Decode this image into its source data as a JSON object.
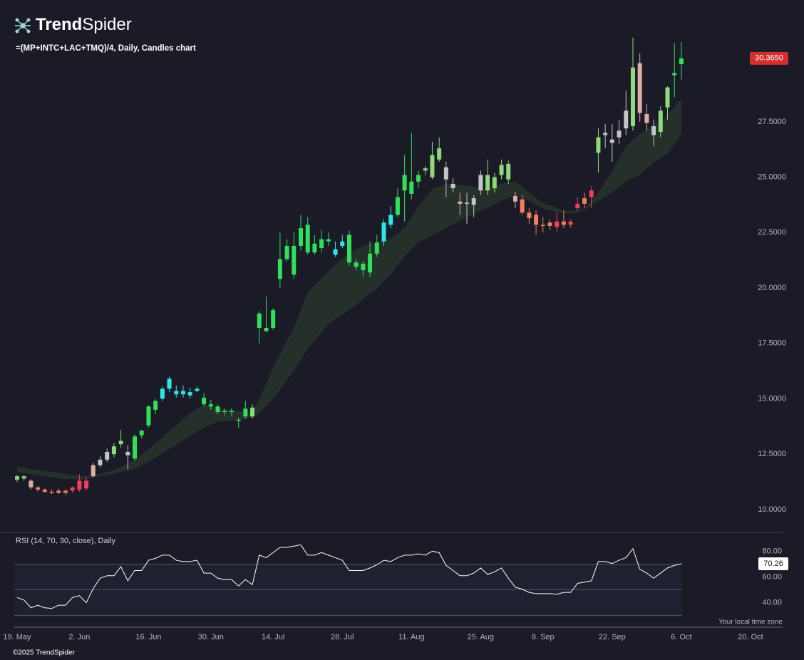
{
  "logo": [
    "Trend",
    "Spider"
  ],
  "footer": "©2025 TrendSpider",
  "timezone_note": "Your local time zone",
  "chart_data": [
    {
      "type": "candlestick",
      "title": "=(MP+INTC+LAC+TMQ)/4, Daily, Candles chart",
      "categories": [
        "19. May",
        null,
        null,
        null,
        null,
        null,
        null,
        null,
        null,
        "2. Jun",
        null,
        null,
        null,
        null,
        null,
        null,
        null,
        null,
        null,
        "16. Jun",
        null,
        null,
        null,
        null,
        null,
        null,
        null,
        null,
        "30. Jun",
        null,
        null,
        null,
        null,
        null,
        null,
        null,
        null,
        "14. Jul",
        null,
        null,
        null,
        null,
        null,
        null,
        null,
        null,
        null,
        "28. Jul",
        null,
        null,
        null,
        null,
        null,
        null,
        null,
        null,
        null,
        "11. Aug",
        null,
        null,
        null,
        null,
        null,
        null,
        null,
        null,
        null,
        "25. Aug",
        null,
        null,
        null,
        null,
        null,
        null,
        null,
        null,
        "8. Sep",
        null,
        null,
        null,
        null,
        null,
        null,
        null,
        null,
        null,
        "22. Sep",
        null,
        null,
        null,
        null,
        null,
        null,
        null,
        null,
        null,
        "6. Oct",
        null,
        null,
        null,
        null,
        null,
        null,
        null,
        null,
        null,
        "20. Oct"
      ],
      "open": [
        11.35,
        11.5,
        11.3,
        11.0,
        10.9,
        10.8,
        10.85,
        10.75,
        10.85,
        10.9,
        11.3,
        11.5,
        12.0,
        12.25,
        12.5,
        12.95,
        12.6,
        12.3,
        13.35,
        13.8,
        14.5,
        15.0,
        15.45,
        15.35,
        15.2,
        15.3,
        15.35,
        15.05,
        14.75,
        14.65,
        14.45,
        14.4,
        14.05,
        14.2,
        14.2,
        18.2,
        18.2,
        18.2,
        20.4,
        21.3,
        20.6,
        21.9,
        22.85,
        21.6,
        21.8,
        22.2,
        21.75,
        21.9,
        22.4,
        21.15,
        20.8,
        20.7,
        21.55,
        22.1,
        22.85,
        23.3,
        24.4,
        24.25,
        24.8,
        25.3,
        25.0,
        25.8,
        25.45,
        24.7,
        23.9,
        23.85,
        23.75,
        24.4,
        24.4,
        24.5,
        25.1,
        24.9,
        24.15,
        24.0,
        23.4,
        23.3,
        22.85,
        22.8,
        22.75,
        23.0,
        22.85,
        23.6,
        23.8,
        24.1,
        26.1,
        26.9,
        26.55,
        26.8,
        27.2,
        27.3,
        30.15,
        27.85,
        27.3,
        27.05,
        28.15,
        29.6,
        30.1,
        null,
        null,
        null,
        null,
        null,
        null,
        null,
        null,
        null,
        null
      ],
      "high": [
        11.55,
        11.55,
        11.35,
        11.05,
        10.95,
        10.9,
        10.95,
        10.9,
        11.05,
        11.6,
        11.45,
        12.1,
        12.4,
        12.75,
        13.0,
        13.6,
        12.9,
        13.4,
        13.6,
        14.7,
        15.0,
        15.55,
        16.0,
        15.6,
        15.6,
        15.5,
        15.55,
        15.25,
        14.95,
        14.75,
        14.55,
        14.6,
        14.15,
        14.9,
        14.75,
        18.95,
        19.6,
        19.1,
        22.5,
        22.2,
        22.5,
        23.3,
        23.2,
        22.4,
        22.6,
        22.5,
        22.1,
        22.4,
        22.6,
        21.3,
        21.2,
        22.1,
        22.4,
        23.1,
        23.7,
        24.5,
        26.0,
        27.0,
        25.3,
        25.5,
        26.6,
        26.8,
        25.7,
        24.95,
        24.3,
        24.3,
        24.2,
        25.3,
        25.8,
        25.2,
        25.8,
        25.75,
        24.35,
        24.2,
        23.6,
        23.5,
        23.2,
        23.1,
        23.4,
        23.5,
        23.1,
        24.1,
        24.3,
        24.6,
        27.2,
        27.4,
        27.4,
        27.6,
        28.9,
        31.3,
        30.6,
        28.3,
        27.6,
        28.2,
        29.1,
        31.05,
        31.1,
        null,
        null,
        null,
        null,
        null,
        null,
        null,
        null,
        null,
        null
      ],
      "low": [
        11.25,
        11.3,
        10.9,
        10.8,
        10.75,
        10.7,
        10.7,
        10.65,
        10.75,
        10.8,
        10.85,
        11.45,
        11.9,
        12.15,
        12.35,
        12.8,
        11.8,
        12.2,
        13.2,
        13.7,
        14.3,
        14.9,
        15.3,
        15.05,
        15.05,
        15.0,
        15.3,
        14.65,
        14.5,
        14.3,
        14.25,
        14.2,
        13.7,
        14.1,
        14.1,
        17.5,
        18.0,
        18.1,
        20.0,
        21.2,
        20.4,
        21.7,
        21.5,
        21.5,
        21.6,
        21.9,
        21.4,
        21.8,
        21.0,
        20.8,
        20.5,
        20.5,
        21.4,
        21.9,
        22.7,
        23.2,
        23.0,
        24.0,
        24.5,
        25.1,
        24.9,
        25.7,
        24.1,
        24.3,
        23.3,
        22.9,
        23.2,
        24.2,
        24.2,
        24.3,
        24.9,
        24.7,
        23.6,
        23.3,
        22.9,
        22.4,
        22.5,
        22.6,
        22.5,
        22.7,
        22.7,
        23.5,
        23.6,
        23.6,
        25.2,
        26.3,
        25.7,
        26.5,
        26.9,
        27.1,
        27.5,
        27.1,
        26.4,
        26.8,
        27.6,
        28.6,
        29.4,
        null,
        null,
        null,
        null,
        null,
        null,
        null,
        null,
        null,
        null
      ],
      "close": [
        11.5,
        11.4,
        11.0,
        10.9,
        10.8,
        10.8,
        10.75,
        10.85,
        11.0,
        11.3,
        10.95,
        12.0,
        12.25,
        12.6,
        12.85,
        13.1,
        12.45,
        13.3,
        13.55,
        14.65,
        14.9,
        15.45,
        15.9,
        15.2,
        15.35,
        15.15,
        15.45,
        14.75,
        14.65,
        14.4,
        14.4,
        14.45,
        14.0,
        14.55,
        14.6,
        18.85,
        18.05,
        19.0,
        21.3,
        21.9,
        21.9,
        22.7,
        21.6,
        22.0,
        22.2,
        22.1,
        21.5,
        22.1,
        21.15,
        20.95,
        21.1,
        21.55,
        22.05,
        22.95,
        23.3,
        24.1,
        25.1,
        24.8,
        25.1,
        25.4,
        26.0,
        26.3,
        24.9,
        24.5,
        23.8,
        23.8,
        24.05,
        25.1,
        25.1,
        25.0,
        25.55,
        25.6,
        23.9,
        23.4,
        23.15,
        22.85,
        22.8,
        22.95,
        23.0,
        22.85,
        23.0,
        23.8,
        24.05,
        24.4,
        26.8,
        27.0,
        26.7,
        27.1,
        28.0,
        29.95,
        27.9,
        27.45,
        26.9,
        28.0,
        29.05,
        29.7,
        30.365,
        null,
        null,
        null,
        null,
        null,
        null,
        null,
        null,
        null,
        null
      ],
      "colors": [
        "#8fd97a",
        "#8fd97a",
        "#dcaea4",
        "#f07f5f",
        "#f07f5f",
        "#f07f5f",
        "#f07f5f",
        "#f07f5f",
        "#f23f5a",
        "#f23f5a",
        "#f23f5a",
        "#dcaea4",
        "#c5c5c5",
        "#c5c5c5",
        "#8fd97a",
        "#8fd97a",
        "#c5c5c5",
        "#2fe05a",
        "#2fe05a",
        "#2fe05a",
        "#2fe05a",
        "#2ee6e6",
        "#2ee6e6",
        "#2ee6e6",
        "#2ee6e6",
        "#2ee6e6",
        "#2ee6e6",
        "#2fe05a",
        "#2fe05a",
        "#2fe05a",
        "#2fe05a",
        "#2fe05a",
        "#2fe05a",
        "#2fe05a",
        "#8fd97a",
        "#2fe05a",
        "#2fe05a",
        "#2fe05a",
        "#2fe05a",
        "#2fe05a",
        "#2fe05a",
        "#2fe05a",
        "#2fe05a",
        "#2fe05a",
        "#2fe05a",
        "#2fe05a",
        "#2ee6e6",
        "#2ee6e6",
        "#2fe05a",
        "#2fe05a",
        "#2fe05a",
        "#2fe05a",
        "#2fe05a",
        "#2ee6e6",
        "#2ee6e6",
        "#2fe05a",
        "#2fe05a",
        "#2fe05a",
        "#2fe05a",
        "#8fd97a",
        "#8fd97a",
        "#8fd97a",
        "#c5c5c5",
        "#c5c5c5",
        "#dcaea4",
        "#c5c5c5",
        "#c5c5c5",
        "#c5c5c5",
        "#8fd97a",
        "#8fd97a",
        "#8fd97a",
        "#8fd97a",
        "#dcaea4",
        "#f07f5f",
        "#f07f5f",
        "#f07f5f",
        "#f07f5f",
        "#f07f5f",
        "#f23f5a",
        "#f07f5f",
        "#f23f5a",
        "#f23f5a",
        "#f07f5f",
        "#f23f5a",
        "#8fd97a",
        "#c5c5c5",
        "#c5c5c5",
        "#c5c5c5",
        "#c5c5c5",
        "#8fd97a",
        "#dcaea4",
        "#dcaea4",
        "#c5c5c5",
        "#8fd97a",
        "#8fd97a",
        "#2fe05a",
        "#2fe05a",
        null,
        null,
        null,
        null,
        null,
        null,
        null,
        null,
        null,
        null
      ],
      "band": {
        "color": "#26302b",
        "upper": [
          11.93,
          11.9,
          11.83,
          11.8,
          11.74,
          11.7,
          11.64,
          11.61,
          11.54,
          11.51,
          11.51,
          11.51,
          11.61,
          11.7,
          11.77,
          11.93,
          12.09,
          12.25,
          12.48,
          12.73,
          12.99,
          13.25,
          13.54,
          13.8,
          14.08,
          14.34,
          14.54,
          14.73,
          14.66,
          14.6,
          14.54,
          14.5,
          14.44,
          14.41,
          14.41,
          14.99,
          15.69,
          16.43,
          17.01,
          17.62,
          18.2,
          19.01,
          19.81,
          20.13,
          20.45,
          20.78,
          21.03,
          21.32,
          21.58,
          21.74,
          21.9,
          22.0,
          22.06,
          22.13,
          22.22,
          22.45,
          22.71,
          23.19,
          23.67,
          24.06,
          24.47,
          24.57,
          24.7,
          24.67,
          24.64,
          24.61,
          24.57,
          24.51,
          24.47,
          24.57,
          24.7,
          24.76,
          24.8,
          24.57,
          24.31,
          24.06,
          23.83,
          23.74,
          23.61,
          23.51,
          23.45,
          23.51,
          23.58,
          23.93,
          24.31,
          24.8,
          25.28,
          25.86,
          26.4,
          26.69,
          26.95,
          27.14,
          27.37,
          27.59,
          27.79,
          28.17,
          28.56,
          null,
          null,
          null,
          null,
          null,
          null,
          null,
          null,
          null,
          null
        ],
        "lower": [
          11.7,
          11.64,
          11.61,
          11.54,
          11.51,
          11.45,
          11.42,
          11.38,
          11.38,
          11.35,
          11.38,
          11.45,
          11.51,
          11.54,
          11.61,
          11.7,
          11.77,
          11.83,
          11.99,
          12.16,
          12.35,
          12.54,
          12.73,
          12.93,
          13.12,
          13.31,
          13.51,
          13.7,
          13.83,
          13.96,
          13.99,
          14.02,
          14.05,
          14.08,
          14.18,
          14.34,
          14.66,
          14.99,
          15.4,
          15.85,
          16.27,
          16.75,
          17.24,
          17.62,
          18.01,
          18.36,
          18.59,
          18.81,
          19.01,
          19.23,
          19.49,
          19.75,
          19.97,
          20.29,
          20.61,
          21.03,
          21.42,
          21.74,
          22.06,
          22.22,
          22.38,
          22.54,
          22.71,
          22.87,
          23.03,
          23.19,
          23.35,
          23.48,
          23.61,
          23.77,
          23.93,
          24.06,
          24.16,
          24.06,
          23.93,
          23.74,
          23.58,
          23.51,
          23.41,
          23.38,
          23.35,
          23.41,
          23.51,
          23.74,
          23.93,
          24.12,
          24.31,
          24.57,
          24.8,
          24.96,
          25.12,
          25.41,
          25.66,
          25.86,
          26.08,
          26.5,
          26.95,
          null,
          null,
          null,
          null,
          null,
          null,
          null,
          null,
          null,
          null
        ]
      },
      "ylim": [
        9.03,
        31.55
      ],
      "yticks": [
        {
          "value": 10,
          "label": "10.0000"
        },
        {
          "value": 12.5,
          "label": "12.5000"
        },
        {
          "value": 15,
          "label": "15.0000"
        },
        {
          "value": 17.5,
          "label": "17.5000"
        },
        {
          "value": 20,
          "label": "20.0000"
        },
        {
          "value": 22.5,
          "label": "22.5000"
        },
        {
          "value": 25,
          "label": "25.0000"
        },
        {
          "value": 27.5,
          "label": "27.5000"
        }
      ],
      "last_close_label": "30.3650",
      "last_close_color": "#d32f2f"
    },
    {
      "type": "line",
      "title": "RSI (14, 70, 30, close), Daily",
      "color": "#ffffff",
      "values": [
        44,
        42,
        36,
        38,
        36,
        35.5,
        38,
        38,
        44,
        45.5,
        40,
        51,
        59,
        61,
        61,
        68,
        57,
        65,
        65,
        73,
        74.5,
        77,
        77,
        73,
        72,
        72,
        73,
        63,
        63,
        59,
        58,
        58,
        53,
        58,
        54,
        77,
        75,
        79,
        83,
        83,
        84,
        85,
        77,
        77,
        79,
        77,
        75,
        73,
        65,
        65,
        65,
        67,
        69.5,
        73,
        72,
        75,
        77,
        77,
        78,
        77,
        80,
        79,
        69,
        65,
        61,
        61,
        63,
        67,
        62,
        64,
        67,
        59,
        52,
        50.5,
        48,
        47,
        47,
        47,
        46.5,
        48,
        48,
        55,
        56,
        57,
        72,
        72,
        70.5,
        73,
        75,
        82,
        66,
        63,
        59,
        63,
        67,
        69,
        70.26,
        null,
        null,
        null,
        null,
        null,
        null,
        null,
        null,
        null,
        null
      ],
      "ylim": [
        22,
        93
      ],
      "yticks": [
        {
          "value": 40,
          "label": "40.00"
        },
        {
          "value": 60,
          "label": "60.00"
        },
        {
          "value": 80,
          "label": "80.00"
        }
      ],
      "levels": [
        70,
        50,
        30
      ],
      "zone_color": "#1f2130"
    }
  ]
}
